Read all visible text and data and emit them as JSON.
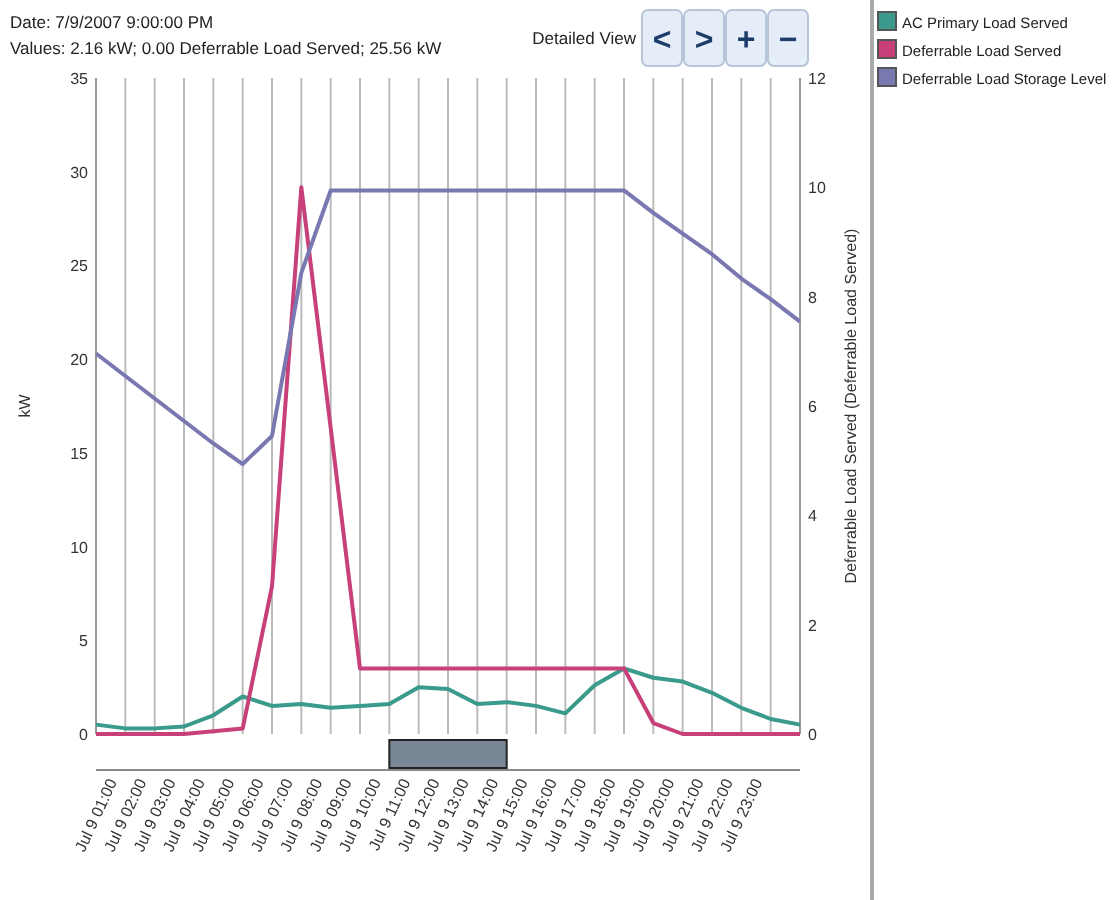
{
  "chart_data": {
    "type": "line",
    "ylabel": "kW",
    "y2label": "Deferrable Load Served (Deferrable Load Served)",
    "annotations": [
      "Date:  7/9/2007 9:00:00 PM",
      "Values:  2.16 kW; 0.00 Deferrable Load Served; 25.56 kW",
      "Detailed View",
      "<",
      ">",
      "+",
      "−"
    ],
    "categories": [
      null,
      "Jul 9 01:00",
      "Jul 9 02:00",
      "Jul 9 03:00",
      "Jul 9 04:00",
      "Jul 9 05:00",
      "Jul 9 06:00",
      "Jul 9 07:00",
      "Jul 9 08:00",
      "Jul 9 09:00",
      "Jul 9 10:00",
      "Jul 9 11:00",
      "Jul 9 12:00",
      "Jul 9 13:00",
      "Jul 9 14:00",
      "Jul 9 15:00",
      "Jul 9 16:00",
      "Jul 9 17:00",
      "Jul 9 18:00",
      "Jul 9 19:00",
      "Jul 9 20:00",
      "Jul 9 21:00",
      "Jul 9 22:00",
      "Jul 9 23:00",
      null
    ],
    "ylim": [
      0,
      35
    ],
    "yticks": [
      0,
      5,
      10,
      15,
      20,
      25,
      30,
      35
    ],
    "y2lim": [
      0,
      12
    ],
    "y2ticks": [
      0,
      2,
      4,
      6,
      8,
      10,
      12
    ],
    "grid": "x",
    "legend": "top right",
    "marker": "none",
    "line_style": "solid",
    "series": [
      {
        "name": "AC Primary Load Served",
        "color": "#3a9a8c",
        "values": [
          0.5,
          0.3,
          0.3,
          0.4,
          1.0,
          2.0,
          1.5,
          1.6,
          1.4,
          1.5,
          1.6,
          2.5,
          2.4,
          1.6,
          1.7,
          1.5,
          1.1,
          2.6,
          3.5,
          3.0,
          2.8,
          2.2,
          1.4,
          0.8,
          0.5
        ]
      },
      {
        "name": "Deferrable Load Served",
        "color": "#c8407a",
        "axis": "y2",
        "values": [
          0,
          0,
          0,
          0,
          0.05,
          0.1,
          2.7,
          10.0,
          5.6,
          1.2,
          1.2,
          1.2,
          1.2,
          1.2,
          1.2,
          1.2,
          1.2,
          1.2,
          1.2,
          0.2,
          0,
          0,
          0,
          0,
          0
        ]
      },
      {
        "name": "Deferrable Load Storage Level",
        "color": "#7a78b0",
        "values": [
          20.3,
          19.1,
          17.9,
          16.7,
          15.5,
          14.4,
          15.9,
          24.6,
          29.0,
          29.0,
          29.0,
          29.0,
          29.0,
          29.0,
          29.0,
          29.0,
          29.0,
          29.0,
          29.0,
          27.8,
          26.7,
          25.6,
          24.3,
          23.2,
          22.0
        ]
      }
    ]
  }
}
